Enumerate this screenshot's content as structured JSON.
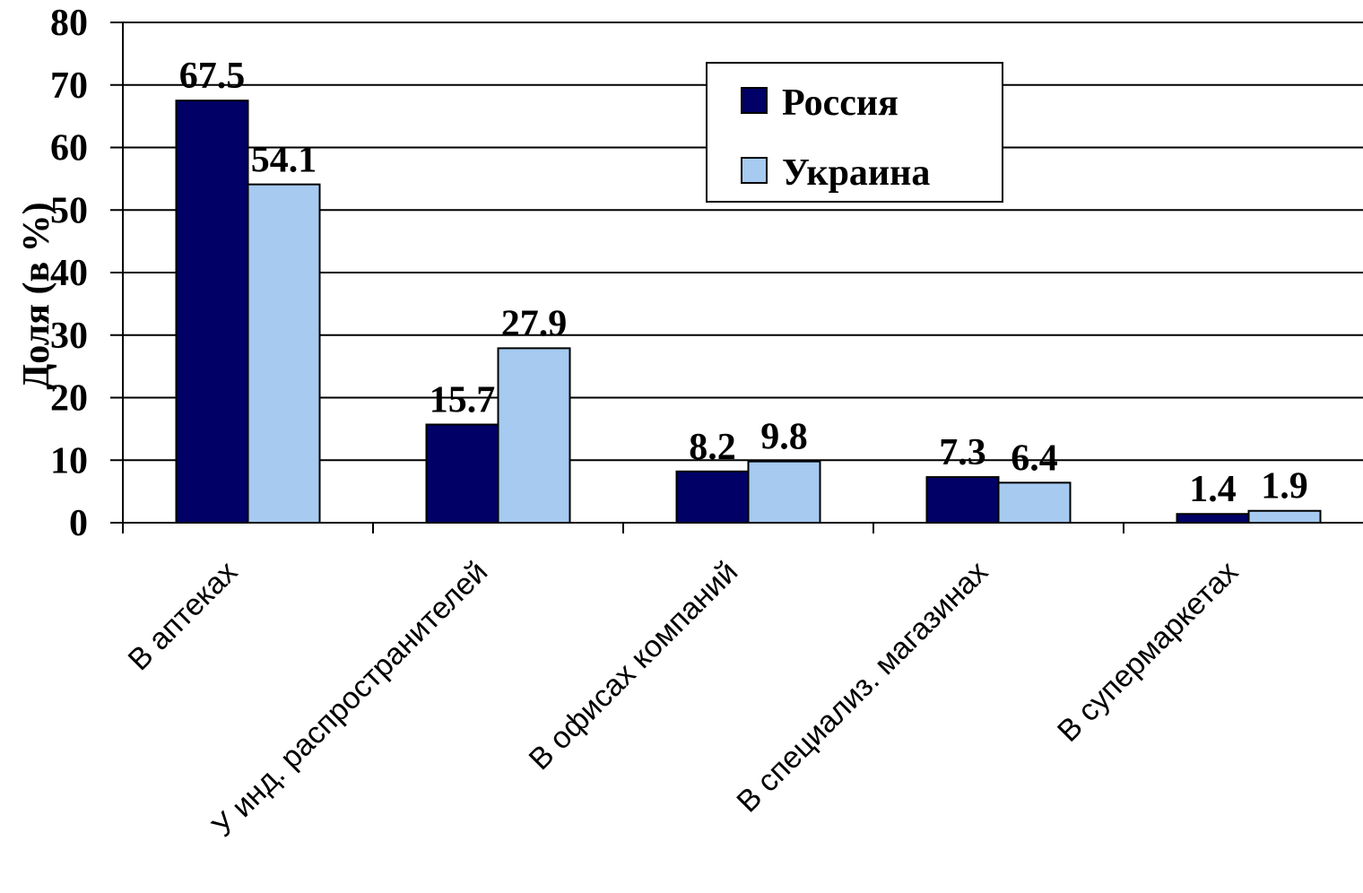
{
  "chart_data": {
    "type": "bar",
    "y_label": "Доля (в %)",
    "categories": [
      "В аптеках",
      "У инд. распространителей",
      "В офисах компаний",
      "В специализ. магазинах",
      "В супермаркетах"
    ],
    "series": [
      {
        "name": "Россия",
        "color": "#000066",
        "values": [
          67.5,
          15.7,
          8.2,
          7.3,
          1.4
        ]
      },
      {
        "name": "Украина",
        "color": "#a6caf0",
        "values": [
          54.1,
          27.9,
          9.8,
          6.4,
          1.9
        ]
      }
    ],
    "ylim": [
      0,
      80
    ],
    "yticks": [
      0,
      10,
      20,
      30,
      40,
      50,
      60,
      70,
      80
    ],
    "grid": true,
    "legend": "top-right"
  }
}
